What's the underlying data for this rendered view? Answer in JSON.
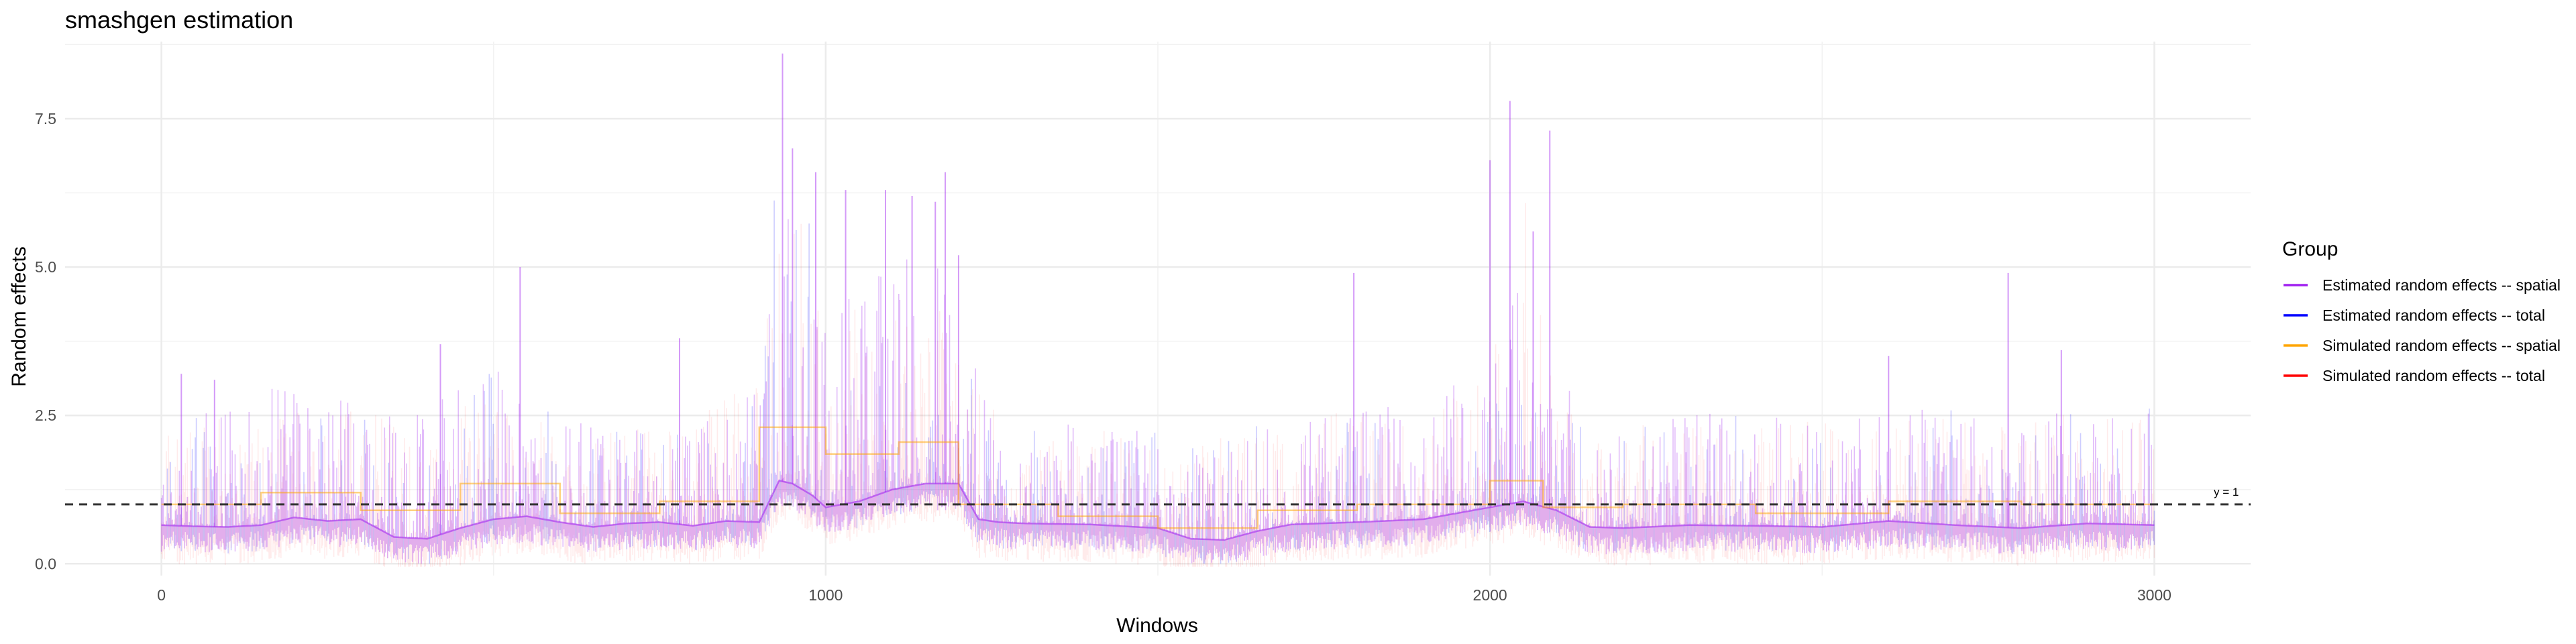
{
  "chart_data": {
    "type": "line",
    "title": "smashgen estimation",
    "xlabel": "Windows",
    "ylabel": "Random effects",
    "xlim": [
      -145,
      3145
    ],
    "ylim": [
      -0.2,
      8.8
    ],
    "x_ticks": [
      0,
      1000,
      2000,
      3000
    ],
    "x_tick_labels": [
      "0",
      "1000",
      "2000",
      "3000"
    ],
    "y_ticks": [
      0.0,
      2.5,
      5.0,
      7.5
    ],
    "y_tick_labels": [
      "0.0",
      "2.5",
      "5.0",
      "7.5"
    ],
    "grid": true,
    "legend": {
      "title": "Group",
      "placement": "right",
      "entries": [
        {
          "label": "Estimated random effects -- spatial",
          "color": "#a020f0"
        },
        {
          "label": "Estimated random effects -- total",
          "color": "#0000ff"
        },
        {
          "label": "Simulated random effects -- spatial",
          "color": "#ffa500"
        },
        {
          "label": "Simulated random effects -- total",
          "color": "#ff0000"
        }
      ]
    },
    "reference_line": {
      "y": 1,
      "label": "y = 1",
      "style": "dashed"
    },
    "series": [
      {
        "name": "Estimated random effects -- spatial",
        "color": "#a020f0",
        "x": [
          0,
          50,
          100,
          150,
          200,
          250,
          300,
          350,
          400,
          450,
          500,
          550,
          600,
          650,
          700,
          750,
          800,
          850,
          900,
          930,
          950,
          980,
          1000,
          1050,
          1100,
          1150,
          1200,
          1230,
          1260,
          1300,
          1400,
          1500,
          1550,
          1600,
          1650,
          1700,
          1800,
          1900,
          1950,
          2000,
          2050,
          2100,
          2150,
          2200,
          2300,
          2400,
          2500,
          2600,
          2700,
          2800,
          2900,
          3000
        ],
        "y": [
          0.65,
          0.63,
          0.62,
          0.65,
          0.78,
          0.72,
          0.75,
          0.45,
          0.42,
          0.6,
          0.75,
          0.8,
          0.7,
          0.62,
          0.68,
          0.7,
          0.64,
          0.72,
          0.7,
          1.4,
          1.35,
          1.15,
          0.95,
          1.05,
          1.25,
          1.35,
          1.35,
          0.75,
          0.7,
          0.68,
          0.66,
          0.6,
          0.42,
          0.4,
          0.55,
          0.66,
          0.7,
          0.75,
          0.85,
          0.95,
          1.05,
          0.9,
          0.62,
          0.6,
          0.65,
          0.64,
          0.62,
          0.72,
          0.65,
          0.6,
          0.68,
          0.65
        ]
      },
      {
        "name": "Simulated random effects -- spatial",
        "color": "#ffa500",
        "x": [
          0,
          150,
          150,
          300,
          300,
          450,
          450,
          600,
          600,
          750,
          750,
          900,
          900,
          1000,
          1000,
          1110,
          1110,
          1200,
          1200,
          1350,
          1350,
          1500,
          1500,
          1650,
          1650,
          1800,
          1800,
          2000,
          2000,
          2080,
          2080,
          2200,
          2200,
          2400,
          2400,
          2600,
          2600,
          2800,
          2800,
          3000
        ],
        "y": [
          1.0,
          1.0,
          1.2,
          1.2,
          0.9,
          0.9,
          1.35,
          1.35,
          0.85,
          0.85,
          1.05,
          1.05,
          2.3,
          2.3,
          1.85,
          1.85,
          2.05,
          2.05,
          1.0,
          1.0,
          0.8,
          0.8,
          0.6,
          0.6,
          0.9,
          0.9,
          1.0,
          1.0,
          1.4,
          1.4,
          0.95,
          0.95,
          1.0,
          1.0,
          0.85,
          0.85,
          1.05,
          1.05,
          1.0,
          1.0
        ]
      },
      {
        "name": "Estimated random effects -- total",
        "color": "#0000ff",
        "x": [],
        "y": []
      },
      {
        "name": "Simulated random effects -- total",
        "color": "#ff0000",
        "x": [],
        "y": []
      }
    ],
    "noise_profile": {
      "x": [
        0,
        100,
        200,
        300,
        400,
        500,
        600,
        700,
        800,
        900,
        920,
        960,
        1000,
        1050,
        1100,
        1150,
        1200,
        1250,
        1300,
        1400,
        1500,
        1600,
        1700,
        1800,
        1900,
        2000,
        2050,
        2100,
        2150,
        2300,
        2500,
        2700,
        2900,
        3000
      ],
      "estimated_peak": [
        2.2,
        2.4,
        2.8,
        2.6,
        2.3,
        3.2,
        2.2,
        2.1,
        2.2,
        2.8,
        5.5,
        6.0,
        3.8,
        4.3,
        4.8,
        5.0,
        4.0,
        2.5,
        2.2,
        2.1,
        2.0,
        2.0,
        2.2,
        2.6,
        2.2,
        3.5,
        4.5,
        3.0,
        2.2,
        2.3,
        2.2,
        2.4,
        2.4,
        2.4
      ],
      "simulated_peak": [
        2.0,
        2.2,
        2.4,
        2.4,
        2.2,
        2.6,
        2.0,
        2.0,
        2.1,
        3.0,
        5.0,
        5.6,
        3.5,
        3.8,
        4.0,
        4.2,
        3.5,
        2.3,
        2.0,
        2.0,
        1.9,
        1.9,
        2.0,
        2.4,
        2.0,
        3.2,
        5.5,
        2.6,
        2.0,
        2.1,
        2.1,
        2.2,
        2.2,
        2.2
      ],
      "spikes": [
        {
          "x": 935,
          "y": 8.6
        },
        {
          "x": 950,
          "y": 7.0
        },
        {
          "x": 985,
          "y": 6.6
        },
        {
          "x": 1030,
          "y": 6.3
        },
        {
          "x": 1090,
          "y": 6.3
        },
        {
          "x": 1130,
          "y": 6.2
        },
        {
          "x": 1165,
          "y": 6.1
        },
        {
          "x": 1180,
          "y": 6.6
        },
        {
          "x": 1200,
          "y": 5.2
        },
        {
          "x": 540,
          "y": 5.0
        },
        {
          "x": 1795,
          "y": 4.9
        },
        {
          "x": 2000,
          "y": 6.8
        },
        {
          "x": 2030,
          "y": 7.8
        },
        {
          "x": 2090,
          "y": 7.3
        },
        {
          "x": 2065,
          "y": 5.6
        },
        {
          "x": 2780,
          "y": 4.9
        },
        {
          "x": 2860,
          "y": 3.6
        },
        {
          "x": 2600,
          "y": 3.5
        },
        {
          "x": 30,
          "y": 3.2
        },
        {
          "x": 80,
          "y": 3.1
        },
        {
          "x": 420,
          "y": 3.7
        },
        {
          "x": 780,
          "y": 3.8
        }
      ]
    }
  }
}
